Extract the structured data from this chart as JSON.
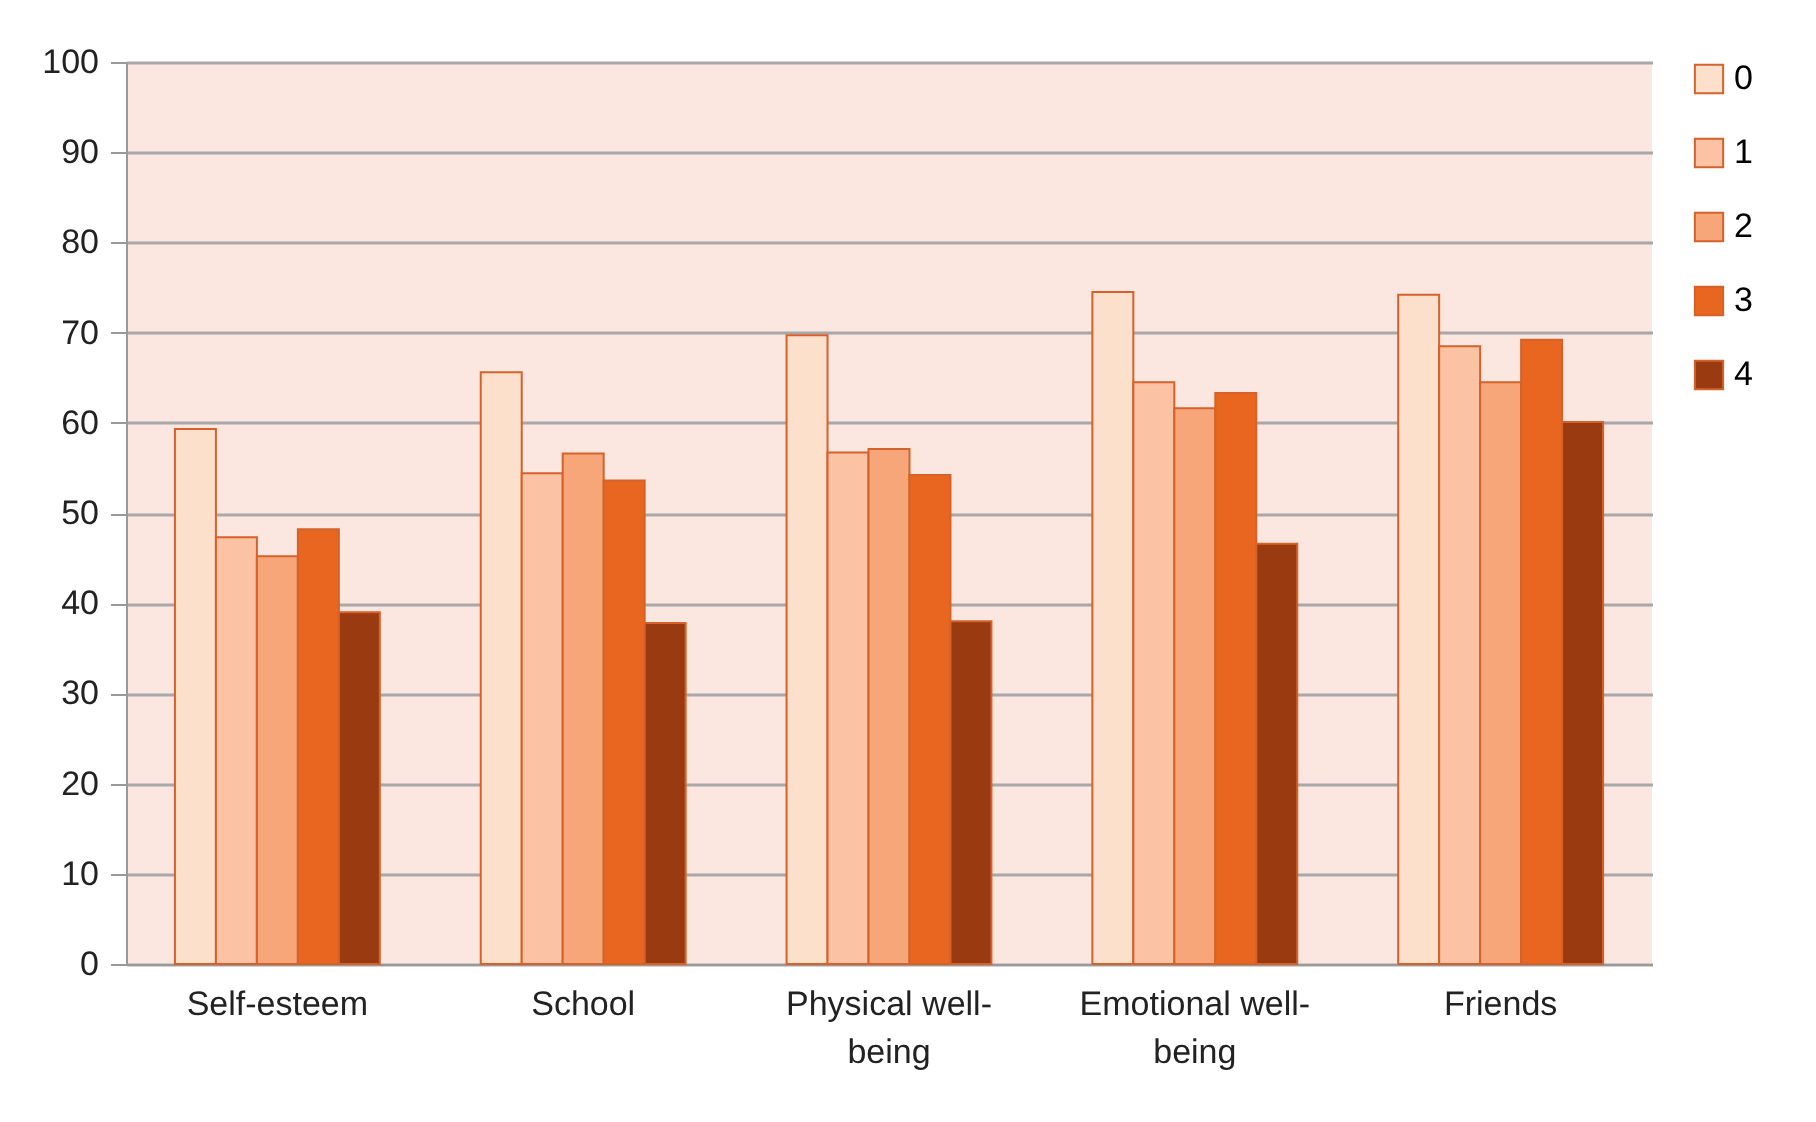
{
  "chart_data": {
    "type": "bar",
    "categories": [
      "Self-esteem",
      "School",
      "Physical well-being",
      "Emotional well-being",
      "Friends"
    ],
    "series": [
      {
        "name": "0",
        "color": "#fde0cc",
        "values": [
          59.3,
          65.6,
          69.7,
          74.5,
          74.2
        ]
      },
      {
        "name": "1",
        "color": "#fbc3a3",
        "values": [
          47.3,
          54.4,
          56.7,
          64.5,
          68.5
        ]
      },
      {
        "name": "2",
        "color": "#f7a67a",
        "values": [
          45.2,
          56.6,
          57.1,
          61.6,
          64.5
        ]
      },
      {
        "name": "3",
        "color": "#e8661f",
        "values": [
          48.2,
          53.6,
          54.2,
          63.3,
          69.2
        ]
      },
      {
        "name": "4",
        "color": "#9a3a10",
        "values": [
          39.0,
          37.8,
          38.0,
          46.6,
          60.1
        ]
      }
    ],
    "ylim": [
      0,
      100
    ],
    "yticks": [
      0,
      10,
      20,
      30,
      40,
      50,
      60,
      70,
      80,
      90,
      100
    ],
    "grid": "y",
    "legend": "right"
  }
}
